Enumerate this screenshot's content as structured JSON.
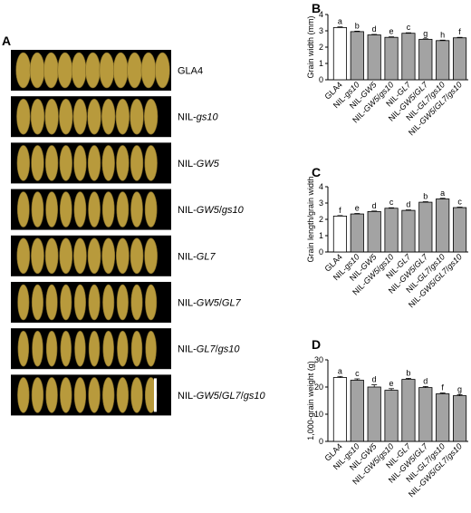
{
  "panels": {
    "A": "A",
    "B": "B",
    "C": "C",
    "D": "D"
  },
  "photo_labels": [
    "GLA4",
    "NIL-gs10",
    "NIL-GW5",
    "NIL-GW5/gs10",
    "NIL-GL7",
    "NIL-GW5/GL7",
    "NIL-GL7/gs10",
    "NIL-GW5/GL7/gs10"
  ],
  "colors": {
    "control_bar": "#ffffff",
    "nil_bar": "#a3a3a3",
    "photo_background": "#000000",
    "grain": "#b89a3c",
    "scale_bar": "#ffffff"
  },
  "chart_data": [
    {
      "id": "B",
      "type": "bar",
      "categories": [
        "GLA4",
        "NIL-gs10",
        "NIL-GW5",
        "NIL-GW5/gs10",
        "NIL-GL7",
        "NIL-GW5/GL7",
        "NIL-GL7/gs10",
        "NIL-GW5/GL7/gs10"
      ],
      "values": [
        3.2,
        2.95,
        2.75,
        2.6,
        2.85,
        2.48,
        2.4,
        2.57
      ],
      "errors": [
        0.04,
        0.03,
        0.03,
        0.03,
        0.03,
        0.03,
        0.03,
        0.03
      ],
      "significance": [
        "a",
        "b",
        "d",
        "e",
        "c",
        "g",
        "h",
        "f"
      ],
      "ylabel": "Grain width (mm)",
      "ylim": [
        0,
        4
      ],
      "yticks": [
        0,
        1,
        2,
        3,
        4
      ]
    },
    {
      "id": "C",
      "type": "bar",
      "categories": [
        "GLA4",
        "NIL-gs10",
        "NIL-GW5",
        "NIL-GW5/gs10",
        "NIL-GL7",
        "NIL-GW5/GL7",
        "NIL-GL7/gs10",
        "NIL-GW5/GL7/gs10"
      ],
      "values": [
        2.2,
        2.33,
        2.48,
        2.68,
        2.55,
        3.05,
        3.25,
        2.72
      ],
      "errors": [
        0.03,
        0.03,
        0.03,
        0.03,
        0.03,
        0.03,
        0.04,
        0.03
      ],
      "significance": [
        "f",
        "e",
        "d",
        "c",
        "d",
        "b",
        "a",
        "c"
      ],
      "ylabel": "Grain length/grain width",
      "ylim": [
        0,
        4
      ],
      "yticks": [
        0,
        1,
        2,
        3,
        4
      ]
    },
    {
      "id": "D",
      "type": "bar",
      "categories": [
        "GLA4",
        "NIL-gs10",
        "NIL-GW5",
        "NIL-GW5/gs10",
        "NIL-GL7",
        "NIL-GW5/GL7",
        "NIL-GL7/gs10",
        "NIL-GW5/GL7/gs10"
      ],
      "values": [
        23.5,
        22.5,
        20.0,
        18.8,
        22.8,
        19.8,
        17.5,
        16.8
      ],
      "errors": [
        0.4,
        0.5,
        0.8,
        0.6,
        0.4,
        0.4,
        0.3,
        0.4
      ],
      "significance": [
        "a",
        "c",
        "d",
        "e",
        "b",
        "d",
        "f",
        "g"
      ],
      "ylabel": "1,000-grain weight (g)",
      "ylim": [
        0,
        30
      ],
      "yticks": [
        0,
        10,
        20,
        30
      ]
    }
  ]
}
